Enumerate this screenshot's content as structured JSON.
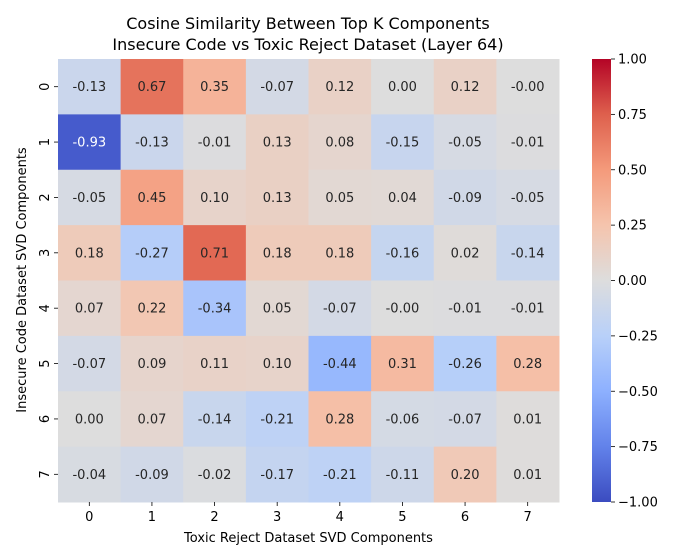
{
  "chart_data": {
    "type": "heatmap",
    "title": "Cosine Similarity Between Top K Components\nInsecure Code vs Toxic Reject Dataset (Layer 64)",
    "xlabel": "Toxic Reject Dataset SVD Components",
    "ylabel": "Insecure Code Dataset SVD Components",
    "x_categories": [
      "0",
      "1",
      "2",
      "3",
      "4",
      "5",
      "6",
      "7"
    ],
    "y_categories": [
      "0",
      "1",
      "2",
      "3",
      "4",
      "5",
      "6",
      "7"
    ],
    "values": [
      [
        -0.13,
        0.67,
        0.35,
        -0.07,
        0.12,
        0.0,
        0.12,
        -0.0
      ],
      [
        -0.93,
        -0.13,
        -0.01,
        0.13,
        0.08,
        -0.15,
        -0.05,
        -0.01
      ],
      [
        -0.05,
        0.45,
        0.1,
        0.13,
        0.05,
        0.04,
        -0.09,
        -0.05
      ],
      [
        0.18,
        -0.27,
        0.71,
        0.18,
        0.18,
        -0.16,
        0.02,
        -0.14
      ],
      [
        0.07,
        0.22,
        -0.34,
        0.05,
        -0.07,
        -0.0,
        -0.01,
        -0.01
      ],
      [
        -0.07,
        0.09,
        0.11,
        0.1,
        -0.44,
        0.31,
        -0.26,
        0.28
      ],
      [
        0.0,
        0.07,
        -0.14,
        -0.21,
        0.28,
        -0.06,
        -0.07,
        0.01
      ],
      [
        -0.04,
        -0.09,
        -0.02,
        -0.17,
        -0.21,
        -0.11,
        0.2,
        0.01
      ]
    ],
    "cell_labels": [
      [
        "-0.13",
        "0.67",
        "0.35",
        "-0.07",
        "0.12",
        "0.00",
        "0.12",
        "-0.00"
      ],
      [
        "-0.93",
        "-0.13",
        "-0.01",
        "0.13",
        "0.08",
        "-0.15",
        "-0.05",
        "-0.01"
      ],
      [
        "-0.05",
        "0.45",
        "0.10",
        "0.13",
        "0.05",
        "0.04",
        "-0.09",
        "-0.05"
      ],
      [
        "0.18",
        "-0.27",
        "0.71",
        "0.18",
        "0.18",
        "-0.16",
        "0.02",
        "-0.14"
      ],
      [
        "0.07",
        "0.22",
        "-0.34",
        "0.05",
        "-0.07",
        "-0.00",
        "-0.01",
        "-0.01"
      ],
      [
        "-0.07",
        "0.09",
        "0.11",
        "0.10",
        "-0.44",
        "0.31",
        "-0.26",
        "0.28"
      ],
      [
        "0.00",
        "0.07",
        "-0.14",
        "-0.21",
        "0.28",
        "-0.06",
        "-0.07",
        "0.01"
      ],
      [
        "-0.04",
        "-0.09",
        "-0.02",
        "-0.17",
        "-0.21",
        "-0.11",
        "0.20",
        "0.01"
      ]
    ],
    "colormap": "coolwarm",
    "vmin": -1.0,
    "vmax": 1.0,
    "colorbar_ticks": [
      1.0,
      0.75,
      0.5,
      0.25,
      0.0,
      -0.25,
      -0.5,
      -0.75,
      -1.0
    ],
    "colorbar_tick_labels": [
      "1.00",
      "0.75",
      "0.50",
      "0.25",
      "0.00",
      "−0.25",
      "−0.50",
      "−0.75",
      "−1.00"
    ],
    "colorbar_placement": "right",
    "grid": false
  }
}
